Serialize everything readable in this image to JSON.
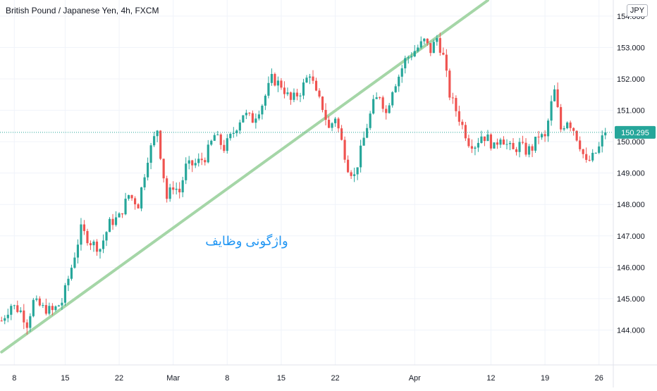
{
  "header": {
    "title": "British Pound / Japanese Yen, 4h, FXCM",
    "currency_badge": "JPY"
  },
  "colors": {
    "up": "#26a69a",
    "down": "#ef5350",
    "trendline": "#a5d6a7",
    "price_line": "#26a69a",
    "annotation": "#2196f3",
    "axis_text": "#131722",
    "grid": "#f0f3fa"
  },
  "chart_data": {
    "type": "candlestick",
    "symbol": "GBP/JPY",
    "interval": "4h",
    "source": "FXCM",
    "y_axis": {
      "ticks": [
        "154.000",
        "153.000",
        "152.000",
        "151.000",
        "150.000",
        "149.000",
        "148.000",
        "147.000",
        "146.000",
        "145.000",
        "144.000"
      ],
      "range": [
        143.0,
        154.4
      ],
      "position": "right"
    },
    "x_axis": {
      "ticks": [
        {
          "label": "8",
          "index": 4
        },
        {
          "label": "15",
          "index": 20
        },
        {
          "label": "22",
          "index": 37
        },
        {
          "label": "Mar",
          "index": 54
        },
        {
          "label": "8",
          "index": 71
        },
        {
          "label": "15",
          "index": 88
        },
        {
          "label": "22",
          "index": 105
        },
        {
          "label": "Apr",
          "index": 130
        },
        {
          "label": "12",
          "index": 154
        },
        {
          "label": "19",
          "index": 171
        },
        {
          "label": "26",
          "index": 188
        }
      ]
    },
    "current_price": "150.295",
    "current_price_value": 150.295,
    "annotation": "واژگونی وظایف",
    "trendline": {
      "from": {
        "index": 0,
        "price": 143.3
      },
      "to": {
        "index": 153,
        "price": 154.5
      }
    },
    "price_path": [
      [
        0,
        144.3
      ],
      [
        3,
        144.8
      ],
      [
        6,
        144.6
      ],
      [
        8,
        144.2
      ],
      [
        10,
        144.9
      ],
      [
        13,
        144.7
      ],
      [
        16,
        144.6
      ],
      [
        19,
        144.9
      ],
      [
        22,
        146.0
      ],
      [
        25,
        147.2
      ],
      [
        28,
        146.8
      ],
      [
        31,
        146.6
      ],
      [
        34,
        147.4
      ],
      [
        37,
        147.6
      ],
      [
        40,
        148.3
      ],
      [
        43,
        148.0
      ],
      [
        46,
        149.5
      ],
      [
        49,
        150.4
      ],
      [
        50,
        149.6
      ],
      [
        52,
        148.2
      ],
      [
        54,
        148.6
      ],
      [
        56,
        148.4
      ],
      [
        58,
        149.2
      ],
      [
        61,
        149.3
      ],
      [
        64,
        149.5
      ],
      [
        67,
        150.2
      ],
      [
        70,
        149.8
      ],
      [
        73,
        150.3
      ],
      [
        76,
        150.9
      ],
      [
        79,
        150.7
      ],
      [
        82,
        151.2
      ],
      [
        85,
        152.0
      ],
      [
        88,
        151.8
      ],
      [
        91,
        151.3
      ],
      [
        94,
        151.6
      ],
      [
        97,
        152.2
      ],
      [
        99,
        151.5
      ],
      [
        101,
        151.1
      ],
      [
        103,
        150.4
      ],
      [
        105,
        150.8
      ],
      [
        107,
        150.0
      ],
      [
        109,
        149.2
      ],
      [
        111,
        148.9
      ],
      [
        113,
        149.7
      ],
      [
        115,
        150.5
      ],
      [
        117,
        151.2
      ],
      [
        119,
        151.5
      ],
      [
        121,
        150.9
      ],
      [
        123,
        151.7
      ],
      [
        125,
        152.1
      ],
      [
        127,
        152.6
      ],
      [
        129,
        152.8
      ],
      [
        131,
        153.0
      ],
      [
        133,
        153.2
      ],
      [
        135,
        152.9
      ],
      [
        137,
        153.3
      ],
      [
        139,
        152.7
      ],
      [
        141,
        151.5
      ],
      [
        143,
        151.0
      ],
      [
        145,
        150.5
      ],
      [
        147,
        150.0
      ],
      [
        149,
        149.9
      ],
      [
        151,
        150.2
      ],
      [
        153,
        150.1
      ],
      [
        155,
        149.8
      ],
      [
        157,
        150.2
      ],
      [
        159,
        149.9
      ],
      [
        161,
        149.7
      ],
      [
        163,
        149.9
      ],
      [
        165,
        149.7
      ],
      [
        167,
        149.8
      ],
      [
        169,
        150.2
      ],
      [
        171,
        150.1
      ],
      [
        173,
        151.2
      ],
      [
        174,
        151.6
      ],
      [
        176,
        150.4
      ],
      [
        178,
        150.7
      ],
      [
        180,
        150.4
      ],
      [
        182,
        149.9
      ],
      [
        184,
        149.3
      ],
      [
        186,
        149.5
      ],
      [
        188,
        149.8
      ],
      [
        189,
        150.1
      ],
      [
        190,
        150.295
      ]
    ]
  }
}
